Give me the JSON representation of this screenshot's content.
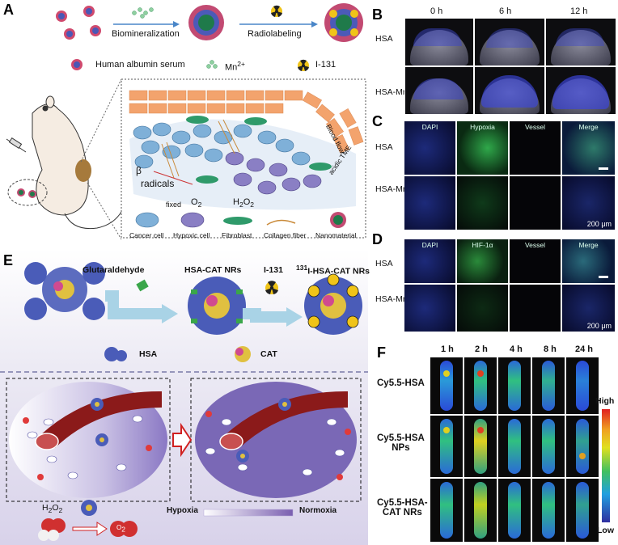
{
  "panels": {
    "A": "A",
    "B": "B",
    "C": "C",
    "D": "D",
    "E": "E",
    "F": "F"
  },
  "panelA": {
    "step1": "Biomineralization",
    "step2": "Radiolabeling",
    "legend": {
      "albumin": "Human albumin serum",
      "mn": "Mn",
      "mn_sup": "2+",
      "iodine": "I-131"
    },
    "tme": {
      "blood_flow": "Blood flow",
      "beta": "β",
      "radicals": "radicals",
      "fixed": "fixed",
      "o2": "O",
      "o2_sub": "2",
      "h2o2": "H",
      "h2o2_sub": "2",
      "h2o2_o": "O",
      "h2o2_sub2": "2",
      "acidic": "acidic TME"
    },
    "cell_legend": [
      "Cancer cell",
      "Hypoxic cell",
      "Fibroblast",
      "Collagen fiber",
      "Nanomaterial"
    ]
  },
  "panelB": {
    "times": [
      "0 h",
      "6 h",
      "12 h"
    ],
    "rows": [
      {
        "label": "HSA",
        "sub": ""
      },
      {
        "label": "HSA-MnO",
        "sub": "2"
      }
    ]
  },
  "panelC": {
    "channels": [
      "DAPI",
      "Hypoxia",
      "Vessel",
      "Merge"
    ],
    "rows": [
      {
        "label": "HSA",
        "sub": ""
      },
      {
        "label": "HSA-MnO",
        "sub": "2"
      }
    ],
    "scale": "200 μm"
  },
  "panelD": {
    "channels": [
      "DAPI",
      "HIF-1α",
      "Vessel",
      "Merge"
    ],
    "rows": [
      {
        "label": "HSA",
        "sub": ""
      },
      {
        "label": "HSA-MnO",
        "sub": "2"
      }
    ],
    "scale": "200 μm"
  },
  "panelE": {
    "reagent1": "Glutaraldehyde",
    "product1": "HSA-CAT NRs",
    "reagent2": "I-131",
    "product2_sup": "131",
    "product2": "I-HSA-CAT NRs",
    "legend_hsa": "HSA",
    "legend_cat": "CAT",
    "h2o2": "H",
    "h2o2_sub": "2",
    "h2o2_o": "O",
    "h2o2_sub2": "2",
    "o2": "O",
    "o2_sub": "2",
    "hypoxia": "Hypoxia",
    "normoxia": "Normoxia"
  },
  "panelF": {
    "times": [
      "1 h",
      "2 h",
      "4 h",
      "8 h",
      "24 h"
    ],
    "rows": [
      {
        "l1": "Cy5.5-HSA",
        "l2": ""
      },
      {
        "l1": "Cy5.5-HSA",
        "l2": "NPs"
      },
      {
        "l1": "Cy5.5-HSA-",
        "l2": "CAT NRs"
      }
    ],
    "scale_high": "High",
    "scale_low": "Low"
  },
  "colors": {
    "vessel": "#e8895a",
    "cancer": "#7fb0d8",
    "fibroblast": "#2f9a6a",
    "hypoxic": "#7b6fb3",
    "tumor_purple": "#6b5fa6",
    "blood": "#8b1a1a"
  }
}
